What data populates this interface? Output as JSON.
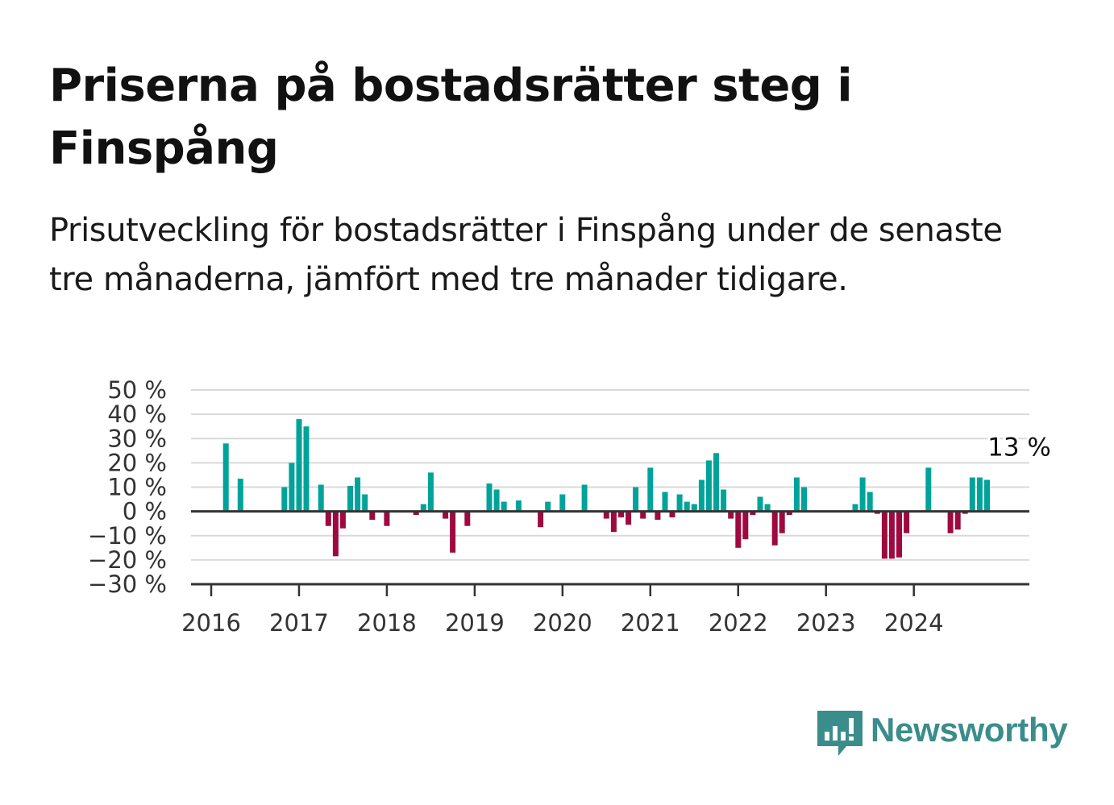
{
  "header": {
    "title": "Priserna på bostadsrätter steg i Finspång",
    "subtitle": "Prisutveckling för bostadsrätter i Finspång under de senaste tre månaderna, jämfört med tre månader tidigare."
  },
  "brand": {
    "name": "Newsworthy",
    "icon": "newsworthy-logo-icon",
    "color": "#3a8d8a"
  },
  "colors": {
    "positive": "#00a39a",
    "negative": "#9e0a3f",
    "grid": "#d9d9d9",
    "axis": "#333333"
  },
  "chart_data": {
    "type": "bar",
    "title": "Priserna på bostadsrätter steg i Finspång",
    "subtitle": "Prisutveckling för bostadsrätter i Finspång under de senaste tre månaderna, jämfört med tre månader tidigare.",
    "xlabel": "",
    "ylabel": "",
    "ylim": [
      -30,
      50
    ],
    "y_ticks": [
      50,
      40,
      30,
      20,
      10,
      0,
      -10,
      -20,
      -30
    ],
    "y_tick_labels": [
      "50 %",
      "40 %",
      "30 %",
      "20 %",
      "10 %",
      "0 %",
      "−10 %",
      "−20 %",
      "−30 %"
    ],
    "x_tick_labels": [
      "2016",
      "2017",
      "2018",
      "2019",
      "2020",
      "2021",
      "2022",
      "2023",
      "2024"
    ],
    "grid": true,
    "annotation": {
      "label": "13 %",
      "date": "2024-11",
      "value": 13
    },
    "series": [
      {
        "x": [
          "2016-01",
          "2016-02",
          "2016-03",
          "2016-04",
          "2016-05",
          "2016-06",
          "2016-07",
          "2016-08",
          "2016-09",
          "2016-10",
          "2016-11",
          "2016-12",
          "2017-01",
          "2017-02",
          "2017-03",
          "2017-04",
          "2017-05",
          "2017-06",
          "2017-07",
          "2017-08",
          "2017-09",
          "2017-10",
          "2017-11",
          "2017-12",
          "2018-01",
          "2018-02",
          "2018-03",
          "2018-04",
          "2018-05",
          "2018-06",
          "2018-07",
          "2018-08",
          "2018-09",
          "2018-10",
          "2018-11",
          "2018-12",
          "2019-01",
          "2019-02",
          "2019-03",
          "2019-04",
          "2019-05",
          "2019-06",
          "2019-07",
          "2019-08",
          "2019-09",
          "2019-10",
          "2019-11",
          "2019-12",
          "2020-01",
          "2020-02",
          "2020-03",
          "2020-04",
          "2020-05",
          "2020-06",
          "2020-07",
          "2020-08",
          "2020-09",
          "2020-10",
          "2020-11",
          "2020-12",
          "2021-01",
          "2021-02",
          "2021-03",
          "2021-04",
          "2021-05",
          "2021-06",
          "2021-07",
          "2021-08",
          "2021-09",
          "2021-10",
          "2021-11",
          "2021-12",
          "2022-01",
          "2022-02",
          "2022-03",
          "2022-04",
          "2022-05",
          "2022-06",
          "2022-07",
          "2022-08",
          "2022-09",
          "2022-10",
          "2022-11",
          "2022-12",
          "2023-01",
          "2023-02",
          "2023-03",
          "2023-04",
          "2023-05",
          "2023-06",
          "2023-07",
          "2023-08",
          "2023-09",
          "2023-10",
          "2023-11",
          "2023-12",
          "2024-01",
          "2024-02",
          "2024-03",
          "2024-04",
          "2024-05",
          "2024-06",
          "2024-07",
          "2024-08",
          "2024-09",
          "2024-10",
          "2024-11"
        ],
        "values": [
          null,
          null,
          28,
          null,
          13.5,
          null,
          null,
          null,
          null,
          null,
          10,
          20,
          38,
          35,
          null,
          11,
          -6,
          -18.5,
          -7,
          10.5,
          14,
          7,
          -3.5,
          null,
          -6,
          null,
          null,
          null,
          -1.5,
          3,
          16,
          null,
          -3,
          -17,
          null,
          -6,
          null,
          null,
          11.5,
          9,
          4,
          null,
          4.5,
          null,
          null,
          -6.5,
          4,
          null,
          7,
          null,
          null,
          11,
          null,
          null,
          -3,
          -8.5,
          -2.5,
          -5.5,
          10,
          -3,
          18,
          -3.5,
          8,
          -2.5,
          7,
          4,
          3,
          13,
          21,
          24,
          9,
          -3,
          -15,
          -11.5,
          -1.5,
          6,
          3,
          -14,
          -9,
          -1.5,
          14,
          10,
          null,
          null,
          null,
          null,
          null,
          null,
          3,
          14,
          8,
          -1,
          -19.5,
          -19.5,
          -19,
          -9,
          null,
          null,
          18,
          null,
          null,
          -9,
          -7.5,
          -1,
          14,
          14,
          13
        ]
      }
    ]
  }
}
